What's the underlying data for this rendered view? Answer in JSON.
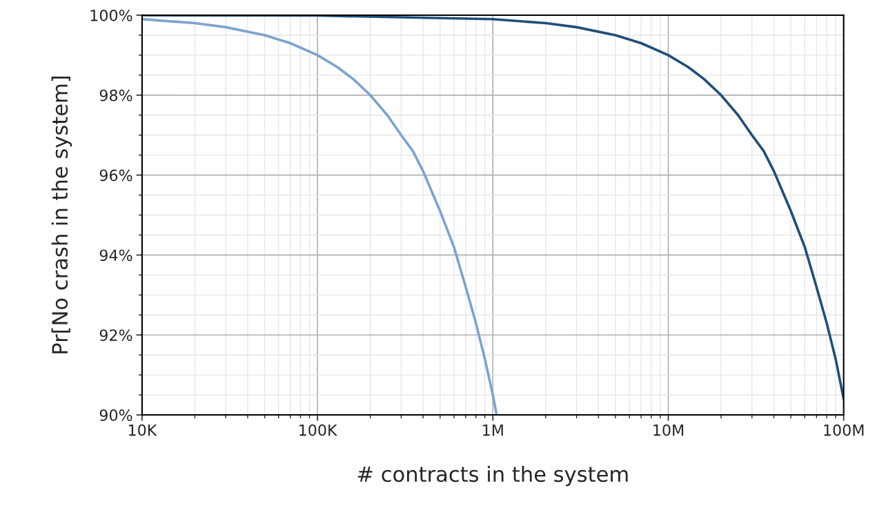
{
  "chart_data": {
    "type": "line",
    "xlabel": "# contracts in the system",
    "ylabel": "Pr[No crash in the system]",
    "log": "x",
    "grid": true,
    "line_style": "solid",
    "marker": "none",
    "xlim": [
      10000,
      100000000
    ],
    "xticks": [
      {
        "value": 10000,
        "label": "10K"
      },
      {
        "value": 100000,
        "label": "100K"
      },
      {
        "value": 1000000,
        "label": "1M"
      },
      {
        "value": 10000000,
        "label": "10M"
      },
      {
        "value": 100000000,
        "label": "100M"
      }
    ],
    "ylim": [
      90,
      100
    ],
    "yticks": [
      {
        "value": 90,
        "label": "90%"
      },
      {
        "value": 92,
        "label": "92%"
      },
      {
        "value": 94,
        "label": "94%"
      },
      {
        "value": 96,
        "label": "96%"
      },
      {
        "value": 98,
        "label": "98%"
      },
      {
        "value": 100,
        "label": "100%"
      }
    ],
    "series": [
      {
        "color": "#7ba3d0",
        "x": [
          10000,
          20000,
          30000,
          50000,
          70000,
          100000,
          130000,
          160000,
          200000,
          250000,
          300000,
          350000,
          400000,
          500000,
          600000,
          700000,
          800000,
          900000,
          1000000,
          1050000
        ],
        "values": [
          99.9,
          99.8,
          99.7,
          99.5,
          99.3,
          99.0,
          98.7,
          98.4,
          98.0,
          97.5,
          97.0,
          96.6,
          96.1,
          95.1,
          94.2,
          93.2,
          92.3,
          91.4,
          90.5,
          90.0
        ]
      },
      {
        "color": "#1f4e79",
        "x": [
          10000,
          100000,
          1000000,
          2000000,
          3000000,
          5000000,
          7000000,
          10000000,
          13000000,
          16000000,
          20000000,
          25000000,
          30000000,
          35000000,
          40000000,
          50000000,
          60000000,
          70000000,
          80000000,
          90000000,
          100000000
        ],
        "values": [
          100.0,
          99.99,
          99.9,
          99.8,
          99.7,
          99.5,
          99.3,
          99.0,
          98.7,
          98.4,
          98.0,
          97.5,
          97.0,
          96.6,
          96.1,
          95.1,
          94.2,
          93.2,
          92.3,
          91.4,
          90.4
        ]
      }
    ]
  }
}
